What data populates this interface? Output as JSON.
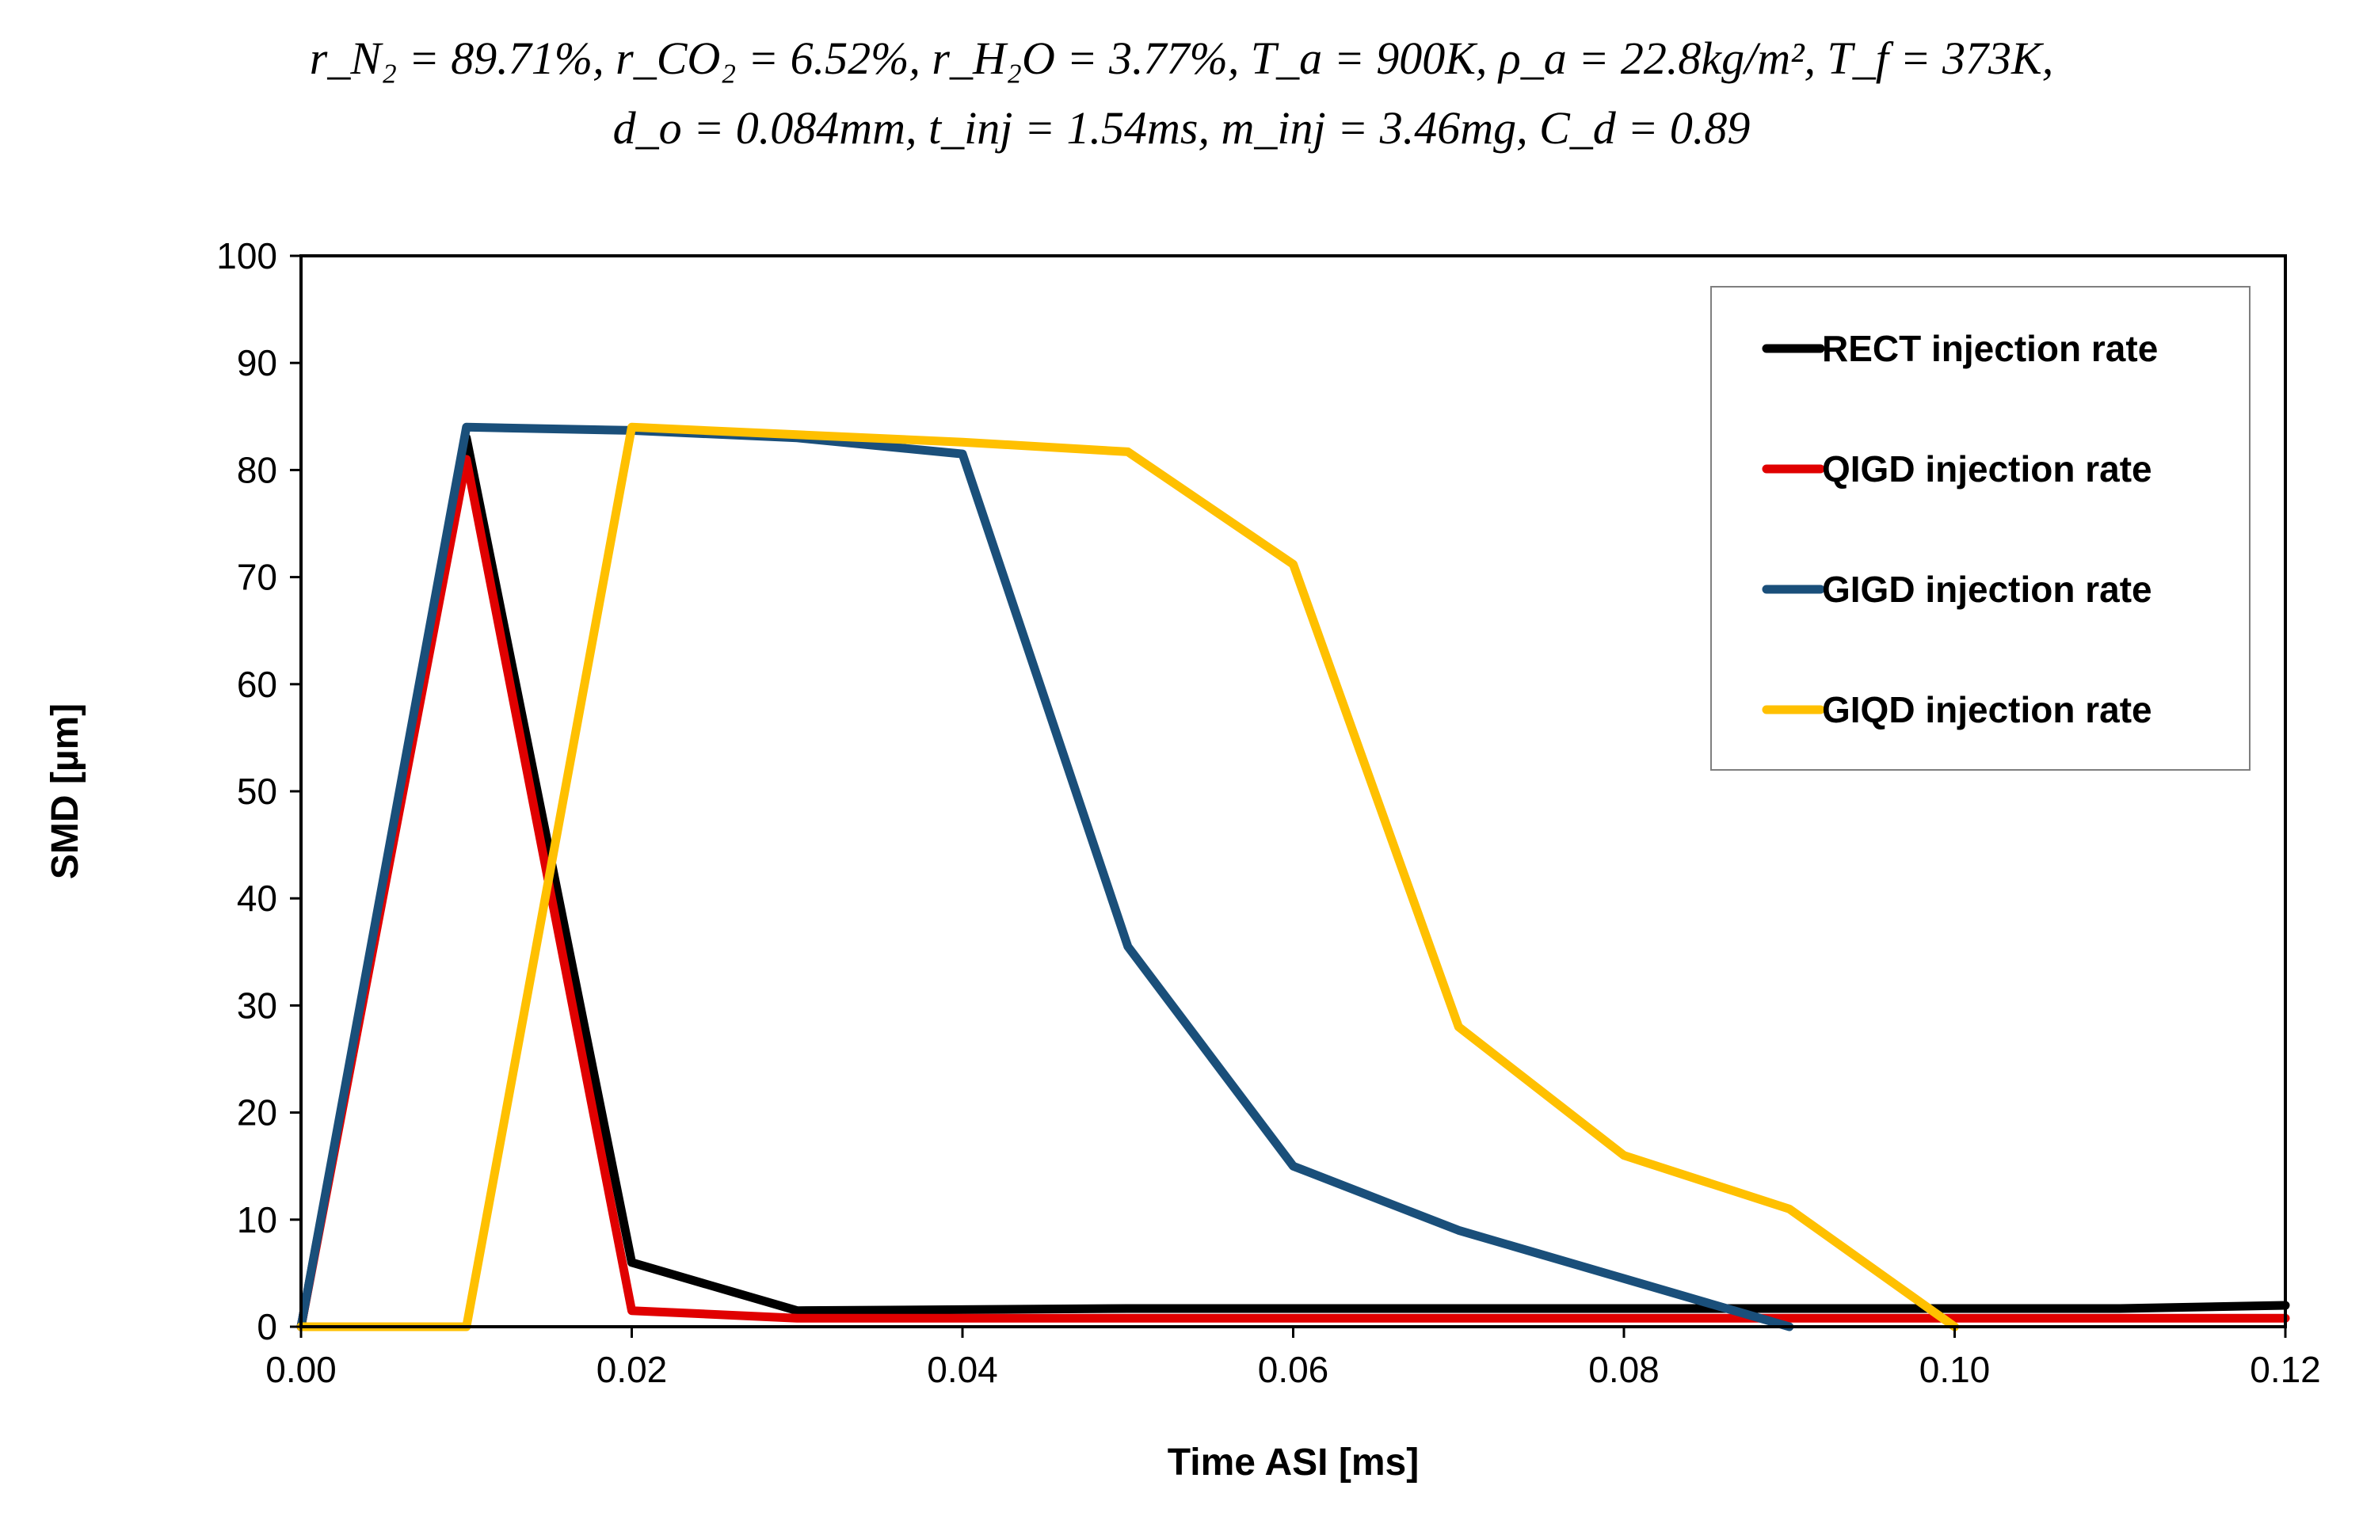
{
  "chart_data": {
    "type": "line",
    "title_line1": "r_N₂ = 89.71%, r_CO₂ = 6.52%, r_H₂O = 3.77%, T_a = 900K, ρ_a = 22.8kg/m², T_f = 373K,",
    "title_line2": "d_o = 0.084mm, t_inj = 1.54ms, m_inj = 3.46mg, C_d = 0.89",
    "xlabel": "Time ASI [ms]",
    "ylabel": "SMD [µm]",
    "xlim": [
      0,
      0.12
    ],
    "ylim": [
      0,
      100
    ],
    "xticks": [
      "0.00",
      "0.02",
      "0.04",
      "0.06",
      "0.08",
      "0.10",
      "0.12"
    ],
    "yticks": [
      "0",
      "10",
      "20",
      "30",
      "40",
      "50",
      "60",
      "70",
      "80",
      "90",
      "100"
    ],
    "grid": false,
    "legend_position": "top-right",
    "series": [
      {
        "name": "RECT injection rate",
        "color": "#000000",
        "x": [
          0,
          0.01,
          0.02,
          0.03,
          0.04,
          0.05,
          0.06,
          0.07,
          0.08,
          0.09,
          0.1,
          0.11,
          0.12
        ],
        "y": [
          0,
          83,
          6,
          1.5,
          1.6,
          1.7,
          1.7,
          1.7,
          1.7,
          1.7,
          1.7,
          1.7,
          2
        ]
      },
      {
        "name": "QIGD injection rate",
        "color": "#e00000",
        "x": [
          0,
          0.01,
          0.02,
          0.03,
          0.04,
          0.05,
          0.06,
          0.07,
          0.08,
          0.09,
          0.1,
          0.11,
          0.12
        ],
        "y": [
          0,
          81,
          1.5,
          0.8,
          0.8,
          0.8,
          0.8,
          0.8,
          0.8,
          0.8,
          0.8,
          0.8,
          0.8
        ]
      },
      {
        "name": "GIGD injection rate",
        "color": "#1a4f7a",
        "x": [
          0,
          0.01,
          0.02,
          0.03,
          0.04,
          0.05,
          0.06,
          0.07,
          0.08,
          0.09
        ],
        "y": [
          0,
          84,
          83.7,
          83,
          81.5,
          35.5,
          15,
          9,
          4.5,
          0
        ]
      },
      {
        "name": "GIQD injection rate",
        "color": "#ffc000",
        "x": [
          0,
          0.01,
          0.02,
          0.03,
          0.04,
          0.05,
          0.06,
          0.07,
          0.08,
          0.09,
          0.1
        ],
        "y": [
          0,
          0,
          84,
          83.3,
          82.6,
          81.7,
          71.2,
          28,
          16,
          11,
          0
        ]
      }
    ]
  }
}
